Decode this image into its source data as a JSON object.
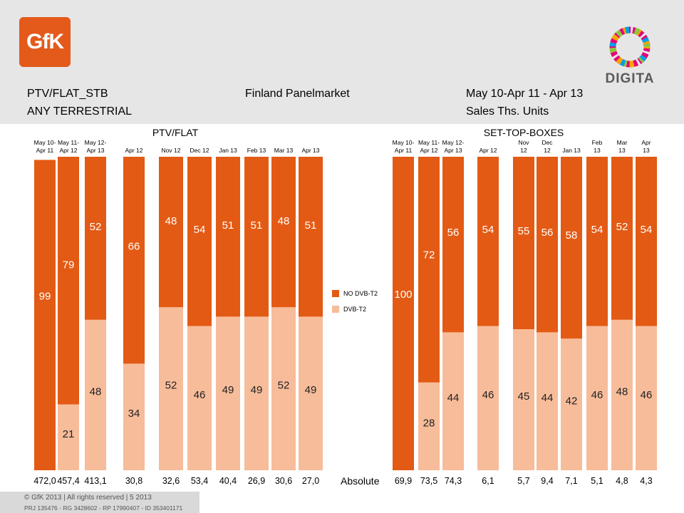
{
  "header": {
    "left_line1": "PTV/FLAT_STB",
    "left_line2": "ANY TERRESTRIAL",
    "center": "Finland Panelmarket",
    "right_line1": "May 10-Apr 11 - Apr 13",
    "right_line2": "Sales Ths. Units"
  },
  "logos": {
    "gfk": "GfK",
    "digita": "DIGITA"
  },
  "groups": {
    "ptv_flat": "PTV/FLAT",
    "stb": "SET-TOP-BOXES"
  },
  "legend": {
    "no_dvb_t2": "NO DVB-T2",
    "dvb_t2": "DVB-T2"
  },
  "colors": {
    "no_dvb_t2": "#e35a14",
    "dvb_t2": "#f7bc9a",
    "grid": "#dddddd"
  },
  "absolute_label": "Absolute",
  "footer": {
    "copyright": "© GfK 2013 | All rights reserved | 5 2013",
    "reference": "PRJ 135476 - RG 3428602 - RP 17990407 - ID 353401171"
  },
  "chart_data": {
    "type": "bar",
    "stacked": true,
    "unit": "%",
    "series": [
      {
        "name": "NO DVB-T2",
        "values": [
          99,
          79,
          52,
          66,
          48,
          54,
          51,
          51,
          48,
          51,
          100,
          72,
          56,
          54,
          55,
          56,
          58,
          54,
          52,
          54
        ]
      },
      {
        "name": "DVB-T2",
        "values": [
          null,
          21,
          48,
          34,
          52,
          46,
          49,
          49,
          52,
          49,
          null,
          28,
          44,
          46,
          45,
          44,
          42,
          46,
          48,
          46
        ]
      }
    ],
    "categories": [
      [
        "May 10-",
        "Apr 11"
      ],
      [
        "May 11-",
        "Apr 12"
      ],
      [
        "May 12-",
        "Apr 13"
      ],
      [
        "Apr 12"
      ],
      [
        "Nov 12"
      ],
      [
        "Dec 12"
      ],
      [
        "Jan 13"
      ],
      [
        "Feb 13"
      ],
      [
        "Mar 13"
      ],
      [
        "Apr 13"
      ],
      [
        "May 10-",
        "Apr 11"
      ],
      [
        "May 11-",
        "Apr 12"
      ],
      [
        "May 12-",
        "Apr 13"
      ],
      [
        "Apr 12"
      ],
      [
        "Nov",
        "12"
      ],
      [
        "Dec",
        "12"
      ],
      [
        "Jan 13"
      ],
      [
        "Feb",
        "13"
      ],
      [
        "Mar",
        "13"
      ],
      [
        "Apr",
        "13"
      ]
    ],
    "absolute": [
      "472,0",
      "457,4",
      "413,1",
      "30,8",
      "32,6",
      "53,4",
      "40,4",
      "26,9",
      "30,6",
      "27,0",
      "69,9",
      "73,5",
      "74,3",
      "6,1",
      "5,7",
      "9,4",
      "7,1",
      "5,1",
      "4,8",
      "4,3"
    ],
    "groups": [
      {
        "name": "PTV/FLAT",
        "range": [
          0,
          9
        ]
      },
      {
        "name": "SET-TOP-BOXES",
        "range": [
          10,
          19
        ]
      }
    ],
    "ylim": [
      0,
      100
    ]
  }
}
